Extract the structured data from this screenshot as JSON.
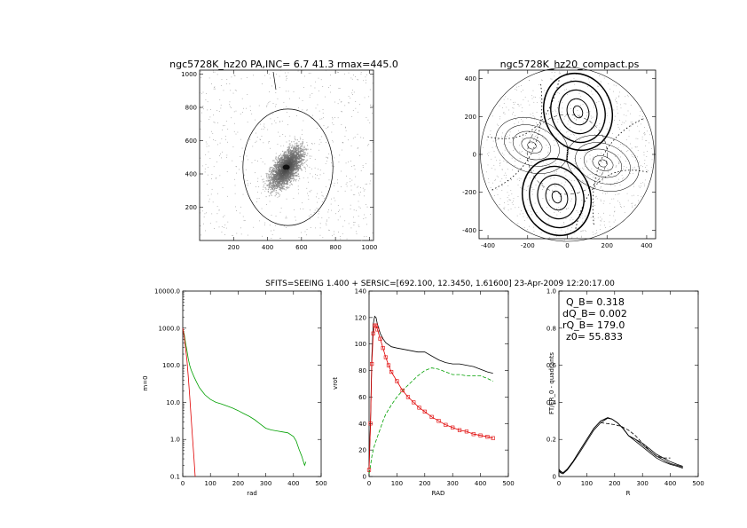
{
  "header": {
    "text": "SFITS=SEEING 1.400 + SERSIC=[692.100, 12.3450, 1.61600]  23-Apr-2009 12:20:17.00"
  },
  "chart_data": [
    {
      "type": "image",
      "title": "ngc5728K_hz20 PA,INC=  6.7 41.3 rmax=445.0",
      "xlim": [
        0,
        1024
      ],
      "ylim": [
        0,
        1024
      ],
      "xticks": [
        "200",
        "400",
        "600",
        "800",
        "1000"
      ],
      "yticks": [
        "200",
        "400",
        "600",
        "800",
        "1000"
      ],
      "ellipse": {
        "cx": 520,
        "cy": 440,
        "rx": 265,
        "ry": 350
      },
      "galaxy_center": [
        510,
        440
      ]
    },
    {
      "type": "contour",
      "title": "ngc5728K_hz20_compact.ps",
      "xlim": [
        -445,
        445
      ],
      "ylim": [
        -445,
        445
      ],
      "xticks": [
        "-400",
        "-200",
        "0",
        "200",
        "400"
      ],
      "yticks": [
        "-400",
        "-200",
        "0",
        "200",
        "400"
      ]
    },
    {
      "type": "line",
      "xlabel": "rad",
      "ylabel": "m=0",
      "xlim": [
        0,
        500
      ],
      "ylim": [
        0.1,
        10000
      ],
      "yscale": "log",
      "xticks": [
        "0",
        "100",
        "200",
        "300",
        "400",
        "500"
      ],
      "yticks": [
        "0.1",
        "1.0",
        "10.0",
        "100.0",
        "1000.0",
        "10000.0"
      ],
      "series": [
        {
          "color": "#00a000",
          "x": [
            0,
            5,
            10,
            15,
            20,
            25,
            30,
            40,
            50,
            60,
            80,
            100,
            120,
            140,
            160,
            180,
            200,
            220,
            240,
            260,
            280,
            300,
            320,
            340,
            360,
            380,
            400,
            410,
            420,
            430,
            440,
            445
          ],
          "y": [
            900,
            700,
            400,
            250,
            150,
            100,
            75,
            50,
            35,
            25,
            16,
            12,
            10,
            9,
            8,
            7,
            6,
            5,
            4.2,
            3.4,
            2.6,
            2.0,
            1.8,
            1.7,
            1.6,
            1.5,
            1.2,
            0.9,
            0.55,
            0.35,
            0.2,
            0.25
          ]
        },
        {
          "color": "#e00000",
          "x": [
            0,
            5,
            10,
            15,
            20,
            25,
            30,
            35,
            40,
            45
          ],
          "y": [
            1000,
            600,
            300,
            140,
            50,
            15,
            4,
            1.2,
            0.35,
            0.1
          ]
        }
      ]
    },
    {
      "type": "line",
      "xlabel": "RAD",
      "ylabel": "vrot",
      "xlim": [
        0,
        500
      ],
      "ylim": [
        0,
        140
      ],
      "xticks": [
        "0",
        "100",
        "200",
        "300",
        "400",
        "500"
      ],
      "yticks": [
        "0",
        "20",
        "40",
        "60",
        "80",
        "100",
        "120",
        "140"
      ],
      "series": [
        {
          "color": "#000000",
          "x": [
            0,
            5,
            10,
            15,
            20,
            25,
            30,
            40,
            50,
            60,
            80,
            100,
            125,
            150,
            175,
            200,
            225,
            250,
            275,
            300,
            325,
            350,
            375,
            400,
            425,
            445
          ],
          "y": [
            8,
            40,
            90,
            115,
            121,
            120,
            115,
            108,
            104,
            101,
            98,
            97,
            96,
            95,
            94,
            94,
            91,
            88,
            86,
            85,
            85,
            84,
            83,
            81,
            79,
            78
          ]
        },
        {
          "color": "#00a000",
          "dashed": true,
          "x": [
            0,
            5,
            10,
            15,
            20,
            30,
            40,
            50,
            60,
            80,
            100,
            125,
            150,
            175,
            200,
            225,
            250,
            275,
            300,
            325,
            350,
            375,
            400,
            425,
            445
          ],
          "y": [
            2,
            8,
            15,
            20,
            24,
            30,
            36,
            42,
            47,
            54,
            60,
            66,
            71,
            76,
            80,
            82,
            81,
            79,
            77,
            77,
            76,
            76,
            76,
            74,
            72
          ]
        },
        {
          "color": "#e00000",
          "markers": true,
          "x": [
            0,
            5,
            10,
            15,
            20,
            25,
            30,
            40,
            50,
            60,
            70,
            80,
            100,
            120,
            140,
            160,
            180,
            200,
            225,
            250,
            275,
            300,
            325,
            350,
            375,
            400,
            425,
            445
          ],
          "y": [
            5,
            40,
            85,
            108,
            114,
            114,
            111,
            104,
            97,
            90,
            84,
            79,
            72,
            65,
            60,
            56,
            52,
            49,
            45,
            42,
            39,
            37,
            35,
            34,
            32,
            31,
            30,
            29
          ]
        }
      ]
    },
    {
      "type": "line",
      "xlabel": "R",
      "ylabel": "FT/FR_0 - quadrants",
      "xlim": [
        0,
        500
      ],
      "ylim": [
        0,
        1.0
      ],
      "xticks": [
        "0",
        "100",
        "200",
        "300",
        "400",
        "500"
      ],
      "yticks": [
        "0",
        "0.2",
        "0.4",
        "0.6",
        "0.8",
        "1.0"
      ],
      "annotations": [
        "Q_B=  0.318",
        "dQ_B=  0.002",
        "rQ_B=  179.0",
        "z0= 55.833"
      ],
      "series": [
        {
          "color": "#000000",
          "x": [
            0,
            5,
            15,
            30,
            50,
            75,
            100,
            125,
            150,
            175,
            190,
            210,
            230,
            250,
            275,
            300,
            325,
            350,
            375,
            400,
            425,
            445
          ],
          "y": [
            0.04,
            0.025,
            0.02,
            0.04,
            0.08,
            0.14,
            0.2,
            0.26,
            0.3,
            0.318,
            0.31,
            0.29,
            0.26,
            0.22,
            0.2,
            0.17,
            0.14,
            0.11,
            0.09,
            0.07,
            0.06,
            0.05
          ]
        },
        {
          "color": "#000000",
          "x": [
            0,
            5,
            15,
            30,
            50,
            75,
            100,
            125,
            150,
            175,
            190,
            210,
            230,
            250,
            275,
            300,
            325,
            350,
            375,
            400,
            425,
            445
          ],
          "y": [
            0.04,
            0.03,
            0.02,
            0.04,
            0.08,
            0.14,
            0.2,
            0.26,
            0.3,
            0.316,
            0.31,
            0.29,
            0.26,
            0.22,
            0.19,
            0.16,
            0.13,
            0.1,
            0.08,
            0.065,
            0.055,
            0.045
          ]
        },
        {
          "color": "#000000",
          "x": [
            0,
            5,
            15,
            30,
            50,
            75,
            100,
            125,
            150,
            175,
            190,
            210,
            230,
            250,
            275,
            300,
            325,
            350,
            375,
            400,
            425,
            445
          ],
          "y": [
            0.03,
            0.02,
            0.015,
            0.035,
            0.075,
            0.13,
            0.19,
            0.25,
            0.29,
            0.315,
            0.31,
            0.29,
            0.26,
            0.22,
            0.2,
            0.18,
            0.15,
            0.12,
            0.1,
            0.08,
            0.065,
            0.055
          ]
        },
        {
          "color": "#000000",
          "dashed": true,
          "x": [
            150,
            175,
            200,
            225,
            250,
            275,
            300,
            325,
            350,
            375,
            400
          ],
          "y": [
            0.29,
            0.285,
            0.28,
            0.27,
            0.25,
            0.22,
            0.18,
            0.14,
            0.11,
            0.1,
            0.1
          ]
        }
      ]
    }
  ]
}
